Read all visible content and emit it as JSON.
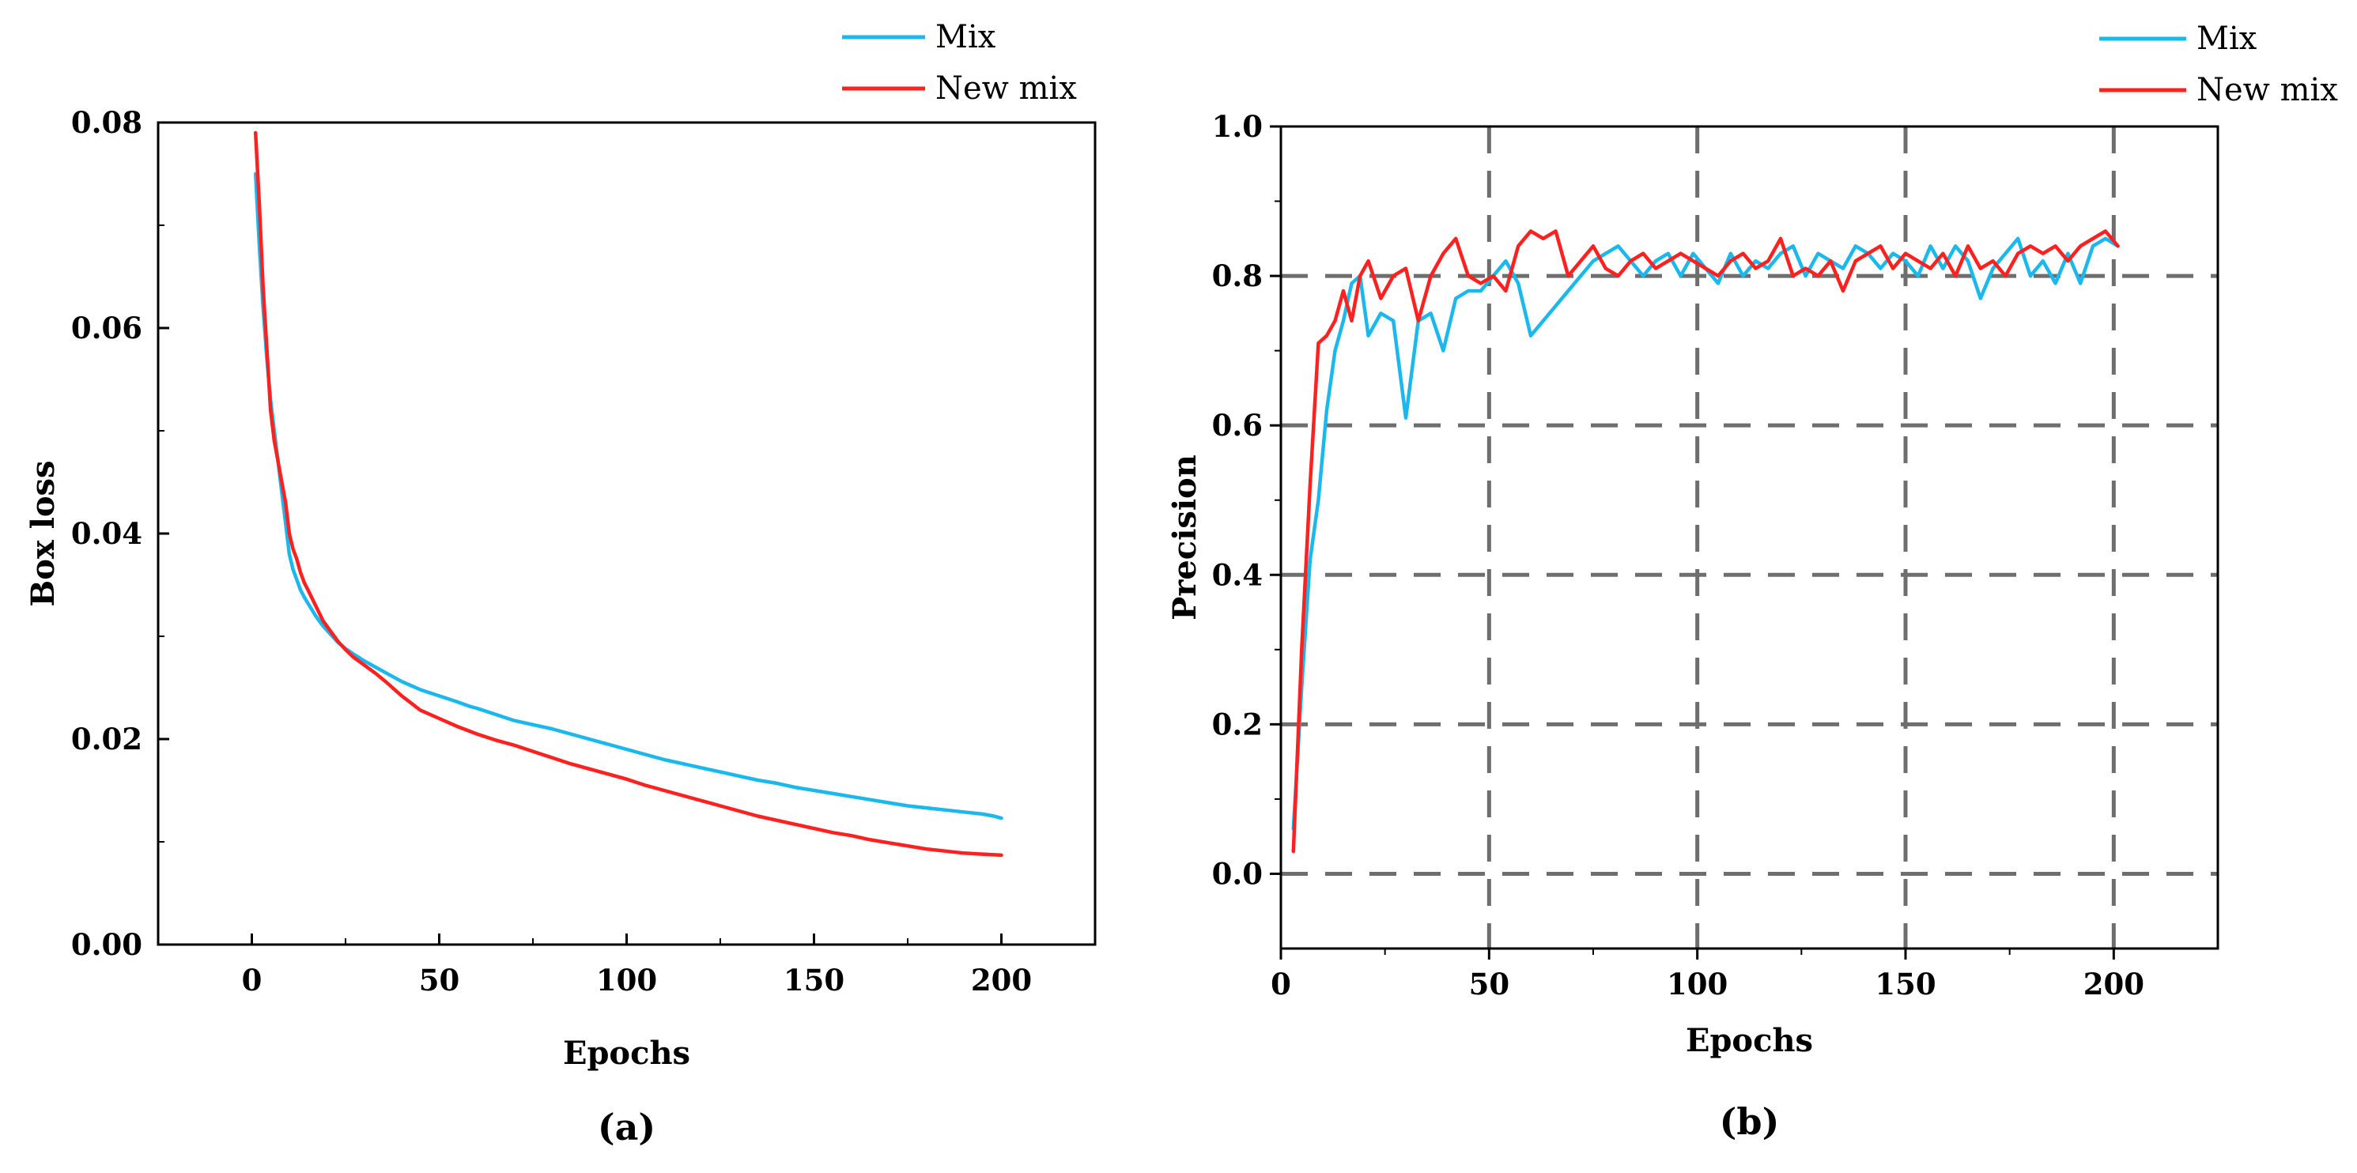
{
  "colors": {
    "mix": "#1ab8ec",
    "new_mix": "#ff2020",
    "grid": "#6e6e6e",
    "axis": "#000000"
  },
  "chart_data": [
    {
      "type": "line",
      "panel": "(a)",
      "title": "",
      "xlabel": "Epochs",
      "ylabel": "Box loss",
      "xlim": [
        -25,
        225
      ],
      "ylim": [
        0.0,
        0.08
      ],
      "x_ticks": [
        0,
        50,
        100,
        150,
        200
      ],
      "y_ticks": [
        0.0,
        0.02,
        0.04,
        0.06,
        0.08
      ],
      "x_tick_labels": [
        "0",
        "50",
        "100",
        "150",
        "200"
      ],
      "y_tick_labels": [
        "0.00",
        "0.02",
        "0.04",
        "0.06",
        "0.08"
      ],
      "grid": false,
      "legend": "top-right, outside",
      "series": [
        {
          "name": "Mix",
          "color": "#1ab8ec",
          "x": [
            1,
            2,
            3,
            4,
            5,
            6,
            7,
            8,
            9,
            10,
            11,
            12,
            13,
            14,
            15,
            17,
            19,
            21,
            23,
            25,
            27,
            30,
            33,
            36,
            40,
            45,
            50,
            55,
            58,
            60,
            65,
            70,
            75,
            80,
            85,
            90,
            95,
            100,
            105,
            110,
            115,
            120,
            125,
            130,
            135,
            140,
            145,
            150,
            155,
            160,
            165,
            170,
            175,
            180,
            185,
            190,
            195,
            198,
            200
          ],
          "values": [
            0.075,
            0.068,
            0.062,
            0.057,
            0.053,
            0.05,
            0.047,
            0.044,
            0.041,
            0.038,
            0.0365,
            0.0355,
            0.0345,
            0.0338,
            0.0332,
            0.032,
            0.031,
            0.0302,
            0.0294,
            0.0288,
            0.0283,
            0.0276,
            0.027,
            0.0264,
            0.0256,
            0.0248,
            0.0242,
            0.0236,
            0.0232,
            0.023,
            0.0224,
            0.0218,
            0.0214,
            0.021,
            0.0205,
            0.02,
            0.0195,
            0.019,
            0.0185,
            0.018,
            0.0176,
            0.0172,
            0.0168,
            0.0164,
            0.016,
            0.0157,
            0.0153,
            0.015,
            0.0147,
            0.0144,
            0.0141,
            0.0138,
            0.0135,
            0.0133,
            0.0131,
            0.0129,
            0.0127,
            0.0125,
            0.0123
          ]
        },
        {
          "name": "New mix",
          "color": "#ff2020",
          "x": [
            1,
            2,
            3,
            4,
            5,
            6,
            7,
            8,
            9,
            10,
            11,
            12,
            13,
            14,
            15,
            17,
            19,
            21,
            23,
            25,
            27,
            30,
            33,
            36,
            40,
            45,
            50,
            55,
            60,
            65,
            70,
            75,
            80,
            85,
            90,
            95,
            100,
            105,
            110,
            115,
            120,
            125,
            130,
            135,
            140,
            145,
            150,
            155,
            160,
            165,
            170,
            175,
            180,
            185,
            190,
            195,
            200
          ],
          "values": [
            0.079,
            0.072,
            0.064,
            0.058,
            0.052,
            0.049,
            0.047,
            0.045,
            0.043,
            0.04,
            0.0385,
            0.0375,
            0.0362,
            0.0352,
            0.0345,
            0.033,
            0.0315,
            0.0305,
            0.0295,
            0.0287,
            0.028,
            0.0272,
            0.0264,
            0.0255,
            0.0242,
            0.0228,
            0.022,
            0.0212,
            0.0205,
            0.0199,
            0.0194,
            0.0188,
            0.0182,
            0.0176,
            0.0171,
            0.0166,
            0.0161,
            0.0155,
            0.015,
            0.0145,
            0.014,
            0.0135,
            0.013,
            0.0125,
            0.0121,
            0.0117,
            0.0113,
            0.0109,
            0.0106,
            0.0102,
            0.0099,
            0.0096,
            0.0093,
            0.0091,
            0.0089,
            0.0088,
            0.0087
          ]
        }
      ]
    },
    {
      "type": "line",
      "panel": "(b)",
      "title": "",
      "xlabel": "Epochs",
      "ylabel": "Precision",
      "xlim": [
        0,
        225
      ],
      "ylim": [
        -0.1,
        1.0
      ],
      "x_ticks": [
        0,
        50,
        100,
        150,
        200
      ],
      "y_ticks": [
        0.0,
        0.2,
        0.4,
        0.6,
        0.8,
        1.0
      ],
      "x_tick_labels": [
        "0",
        "50",
        "100",
        "150",
        "200"
      ],
      "y_tick_labels": [
        "0.0",
        "0.2",
        "0.4",
        "0.6",
        "0.8",
        "1.0"
      ],
      "grid": true,
      "legend": "top-right, outside",
      "series": [
        {
          "name": "Mix",
          "color": "#1ab8ec",
          "x": [
            3,
            5,
            7,
            9,
            11,
            13,
            15,
            17,
            19,
            21,
            24,
            27,
            30,
            33,
            36,
            39,
            42,
            45,
            48,
            51,
            54,
            57,
            60,
            63,
            66,
            69,
            72,
            75,
            78,
            81,
            84,
            87,
            90,
            93,
            96,
            99,
            102,
            105,
            108,
            111,
            114,
            117,
            120,
            123,
            126,
            129,
            132,
            135,
            138,
            141,
            144,
            147,
            150,
            153,
            156,
            159,
            162,
            165,
            168,
            171,
            174,
            177,
            180,
            183,
            186,
            189,
            192,
            195,
            198,
            201
          ],
          "values": [
            0.06,
            0.25,
            0.42,
            0.5,
            0.62,
            0.7,
            0.74,
            0.79,
            0.8,
            0.72,
            0.75,
            0.74,
            0.61,
            0.74,
            0.75,
            0.7,
            0.77,
            0.78,
            0.78,
            0.8,
            0.82,
            0.79,
            0.72,
            0.74,
            0.76,
            0.78,
            0.8,
            0.82,
            0.83,
            0.84,
            0.82,
            0.8,
            0.82,
            0.83,
            0.8,
            0.83,
            0.81,
            0.79,
            0.83,
            0.8,
            0.82,
            0.81,
            0.83,
            0.84,
            0.8,
            0.83,
            0.82,
            0.81,
            0.84,
            0.83,
            0.81,
            0.83,
            0.82,
            0.8,
            0.84,
            0.81,
            0.84,
            0.82,
            0.77,
            0.81,
            0.83,
            0.85,
            0.8,
            0.82,
            0.79,
            0.83,
            0.79,
            0.84,
            0.85,
            0.84
          ]
        },
        {
          "name": "New mix",
          "color": "#ff2020",
          "x": [
            3,
            5,
            7,
            9,
            11,
            13,
            15,
            17,
            19,
            21,
            24,
            27,
            30,
            33,
            36,
            39,
            42,
            45,
            48,
            51,
            54,
            57,
            60,
            63,
            66,
            69,
            72,
            75,
            78,
            81,
            84,
            87,
            90,
            93,
            96,
            99,
            102,
            105,
            108,
            111,
            114,
            117,
            120,
            123,
            126,
            129,
            132,
            135,
            138,
            141,
            144,
            147,
            150,
            153,
            156,
            159,
            162,
            165,
            168,
            171,
            174,
            177,
            180,
            183,
            186,
            189,
            192,
            195,
            198,
            201
          ],
          "values": [
            0.03,
            0.3,
            0.52,
            0.71,
            0.72,
            0.74,
            0.78,
            0.74,
            0.8,
            0.82,
            0.77,
            0.8,
            0.81,
            0.74,
            0.8,
            0.83,
            0.85,
            0.8,
            0.79,
            0.8,
            0.78,
            0.84,
            0.86,
            0.85,
            0.86,
            0.8,
            0.82,
            0.84,
            0.81,
            0.8,
            0.82,
            0.83,
            0.81,
            0.82,
            0.83,
            0.82,
            0.81,
            0.8,
            0.82,
            0.83,
            0.81,
            0.82,
            0.85,
            0.8,
            0.81,
            0.8,
            0.82,
            0.78,
            0.82,
            0.83,
            0.84,
            0.81,
            0.83,
            0.82,
            0.81,
            0.83,
            0.8,
            0.84,
            0.81,
            0.82,
            0.8,
            0.83,
            0.84,
            0.83,
            0.84,
            0.82,
            0.84,
            0.85,
            0.86,
            0.84
          ]
        }
      ]
    }
  ],
  "captions": [
    "(a)",
    "(b)"
  ]
}
